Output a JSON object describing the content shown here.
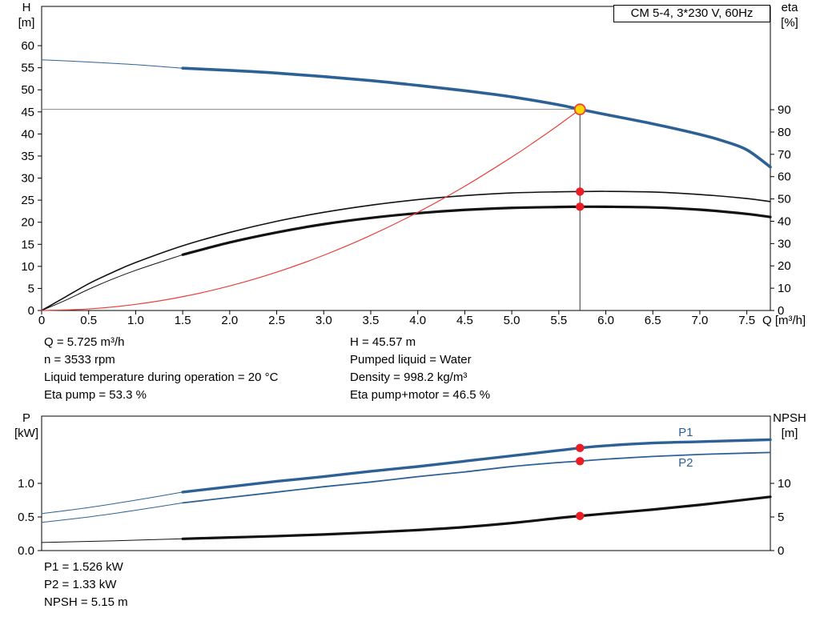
{
  "title_box": "CM 5-4, 3*230 V, 60Hz",
  "operating_data": {
    "left": [
      "Q = 5.725 m³/h",
      "n = 3533 rpm",
      "Liquid temperature during operation = 20 °C",
      "Eta pump = 53.3 %"
    ],
    "right": [
      "H = 45.57 m",
      "Pumped liquid = Water",
      "Density = 998.2 kg/m³",
      "Eta pump+motor = 46.5 %"
    ]
  },
  "power_data": [
    "P1 = 1.526 kW",
    "P2 = 1.33 kW",
    "NPSH = 5.15 m"
  ],
  "colors": {
    "curve_blue": "#2d6196",
    "curve_black": "#111111",
    "system_red": "#e8413c",
    "dot_red": "#ec1c24",
    "duty_yellow": "#ffd800",
    "crosshair_gray": "#8a8a8a"
  },
  "chart_data": [
    {
      "id": "qh-eta",
      "type": "line",
      "title": "CM 5-4, 3*230 V, 60Hz",
      "xlabel": "Q [m³/h]",
      "ylabel_left": [
        "H",
        "[m]"
      ],
      "ylabel_right": [
        "eta",
        "[%]"
      ],
      "xlim": [
        0,
        7.75
      ],
      "ylim_left": [
        0,
        68.9
      ],
      "ylim_right": [
        0,
        136.3
      ],
      "xticks": [
        0,
        0.5,
        1,
        1.5,
        2,
        2.5,
        3,
        3.5,
        4,
        4.5,
        5,
        5.5,
        6,
        6.5,
        7,
        7.5
      ],
      "xtick_labels": [
        "0",
        "0.5",
        "1.0",
        "1.5",
        "2.0",
        "2.5",
        "3.0",
        "3.5",
        "4.0",
        "4.5",
        "5.0",
        "5.5",
        "6.0",
        "6.5",
        "7.0",
        "7.5"
      ],
      "yticks_left": [
        0,
        5,
        10,
        15,
        20,
        25,
        30,
        35,
        40,
        45,
        50,
        55,
        60
      ],
      "ytick_labels_left": [
        "0",
        "5",
        "10",
        "15",
        "20",
        "25",
        "30",
        "35",
        "40",
        "45",
        "50",
        "55",
        "60"
      ],
      "yticks_right": [
        0,
        10,
        20,
        30,
        40,
        50,
        60,
        70,
        80,
        90
      ],
      "ytick_labels_right": [
        "0",
        "10",
        "20",
        "30",
        "40",
        "50",
        "60",
        "70",
        "80",
        "90"
      ],
      "series": [
        {
          "name": "qh-curve-extension",
          "axis": "left",
          "color": "#2d6196",
          "width": 1,
          "points": [
            [
              0,
              56.8
            ],
            [
              0.5,
              56.3
            ],
            [
              1.0,
              55.7
            ],
            [
              1.5,
              54.9
            ]
          ]
        },
        {
          "name": "qh-curve",
          "axis": "left",
          "color": "#2d6196",
          "width": 3.6,
          "points": [
            [
              1.5,
              54.9
            ],
            [
              2,
              54.4
            ],
            [
              2.5,
              53.8
            ],
            [
              3,
              53.0
            ],
            [
              3.5,
              52.1
            ],
            [
              4,
              51.0
            ],
            [
              4.5,
              49.8
            ],
            [
              5,
              48.4
            ],
            [
              5.5,
              46.6
            ],
            [
              5.725,
              45.57
            ],
            [
              6,
              44.4
            ],
            [
              6.5,
              42.3
            ],
            [
              7,
              39.9
            ],
            [
              7.25,
              38.4
            ],
            [
              7.5,
              36.4
            ],
            [
              7.75,
              32.5
            ]
          ]
        },
        {
          "name": "eta-pump-curve",
          "axis": "right",
          "color": "#111111",
          "width": 1.6,
          "points": [
            [
              0,
              0
            ],
            [
              0.25,
              6
            ],
            [
              0.5,
              12
            ],
            [
              0.75,
              17
            ],
            [
              1.0,
              21.5
            ],
            [
              1.5,
              29
            ],
            [
              2,
              35
            ],
            [
              2.5,
              40
            ],
            [
              3,
              44
            ],
            [
              3.5,
              47.2
            ],
            [
              4,
              49.7
            ],
            [
              4.5,
              51.5
            ],
            [
              5,
              52.7
            ],
            [
              5.5,
              53.2
            ],
            [
              5.725,
              53.3
            ],
            [
              6,
              53.4
            ],
            [
              6.5,
              53.1
            ],
            [
              7,
              52.0
            ],
            [
              7.5,
              50.2
            ],
            [
              7.75,
              48.8
            ]
          ]
        },
        {
          "name": "eta-pump-motor-curve-extension",
          "axis": "right",
          "color": "#111111",
          "width": 1,
          "points": [
            [
              0,
              0
            ],
            [
              0.25,
              4.5
            ],
            [
              0.5,
              9.5
            ],
            [
              0.75,
              14
            ],
            [
              1.0,
              18
            ],
            [
              1.5,
              25
            ]
          ]
        },
        {
          "name": "eta-pump-motor-curve",
          "axis": "right",
          "color": "#111111",
          "width": 3.2,
          "points": [
            [
              1.5,
              25
            ],
            [
              2,
              30.5
            ],
            [
              2.5,
              35
            ],
            [
              3,
              38.7
            ],
            [
              3.5,
              41.5
            ],
            [
              4,
              43.6
            ],
            [
              4.5,
              45.1
            ],
            [
              5,
              46.0
            ],
            [
              5.5,
              46.4
            ],
            [
              5.725,
              46.5
            ],
            [
              6,
              46.5
            ],
            [
              6.5,
              46.2
            ],
            [
              7,
              45.2
            ],
            [
              7.5,
              43.3
            ],
            [
              7.75,
              41.9
            ]
          ]
        },
        {
          "name": "system-curve",
          "axis": "left",
          "color": "#e8413c",
          "width": 1.2,
          "points": [
            [
              0,
              0
            ],
            [
              0.5,
              0.35
            ],
            [
              1,
              1.39
            ],
            [
              1.5,
              3.13
            ],
            [
              2,
              5.56
            ],
            [
              2.5,
              8.69
            ],
            [
              3,
              12.51
            ],
            [
              3.5,
              17.03
            ],
            [
              4,
              22.24
            ],
            [
              4.5,
              28.15
            ],
            [
              5,
              34.76
            ],
            [
              5.25,
              38.32
            ],
            [
              5.5,
              42.05
            ],
            [
              5.725,
              45.57
            ]
          ]
        }
      ],
      "crosshair": {
        "q": 5.725,
        "v": 45.57,
        "axis": "left"
      },
      "markers": [
        {
          "name": "duty-point",
          "axis": "left",
          "q": 5.725,
          "v": 45.57,
          "style": "duty"
        },
        {
          "name": "eta-pump-duty-dot",
          "axis": "right",
          "q": 5.725,
          "v": 53.3,
          "style": "dot"
        },
        {
          "name": "eta-pump-motor-duty-dot",
          "axis": "right",
          "q": 5.725,
          "v": 46.5,
          "style": "dot"
        }
      ],
      "annotations": []
    },
    {
      "id": "power-npsh",
      "type": "line",
      "title": "",
      "xlabel": "",
      "ylabel_left": [
        "P",
        "[kW]"
      ],
      "ylabel_right": [
        "NPSH",
        "[m]"
      ],
      "xlim": [
        0,
        7.75
      ],
      "ylim_left": [
        0,
        2.0
      ],
      "ylim_right": [
        0,
        20
      ],
      "xticks": [],
      "xtick_labels": [],
      "yticks_left": [
        0,
        0.5,
        1.0
      ],
      "ytick_labels_left": [
        "0.0",
        "0.5",
        "1.0"
      ],
      "yticks_right": [
        0,
        5,
        10
      ],
      "ytick_labels_right": [
        "0",
        "5",
        "10"
      ],
      "series": [
        {
          "name": "p1-curve-extension",
          "axis": "left",
          "color": "#2d6196",
          "width": 1,
          "points": [
            [
              0,
              0.55
            ],
            [
              0.5,
              0.64
            ],
            [
              1.0,
              0.75
            ],
            [
              1.5,
              0.87
            ]
          ]
        },
        {
          "name": "p1-curve",
          "axis": "left",
          "color": "#2d6196",
          "width": 3.4,
          "points": [
            [
              1.5,
              0.87
            ],
            [
              2,
              0.95
            ],
            [
              2.5,
              1.03
            ],
            [
              3,
              1.1
            ],
            [
              3.5,
              1.18
            ],
            [
              4,
              1.25
            ],
            [
              4.5,
              1.33
            ],
            [
              5,
              1.41
            ],
            [
              5.5,
              1.49
            ],
            [
              5.725,
              1.526
            ],
            [
              6,
              1.56
            ],
            [
              6.5,
              1.6
            ],
            [
              7,
              1.62
            ],
            [
              7.5,
              1.64
            ],
            [
              7.75,
              1.65
            ]
          ]
        },
        {
          "name": "p2-curve-extension",
          "axis": "left",
          "color": "#2d6196",
          "width": 1,
          "points": [
            [
              0,
              0.42
            ],
            [
              0.5,
              0.5
            ],
            [
              1.0,
              0.6
            ],
            [
              1.5,
              0.71
            ]
          ]
        },
        {
          "name": "p2-curve",
          "axis": "left",
          "color": "#2d6196",
          "width": 1.8,
          "points": [
            [
              1.5,
              0.71
            ],
            [
              2,
              0.79
            ],
            [
              2.5,
              0.87
            ],
            [
              3,
              0.95
            ],
            [
              3.5,
              1.02
            ],
            [
              4,
              1.1
            ],
            [
              4.5,
              1.17
            ],
            [
              5,
              1.25
            ],
            [
              5.5,
              1.31
            ],
            [
              5.725,
              1.33
            ],
            [
              6,
              1.36
            ],
            [
              6.5,
              1.4
            ],
            [
              7,
              1.43
            ],
            [
              7.5,
              1.45
            ],
            [
              7.75,
              1.46
            ]
          ]
        },
        {
          "name": "npsh-curve-extension",
          "axis": "right",
          "color": "#111111",
          "width": 1,
          "points": [
            [
              0,
              1.2
            ],
            [
              0.75,
              1.45
            ],
            [
              1.5,
              1.75
            ]
          ]
        },
        {
          "name": "npsh-curve",
          "axis": "right",
          "color": "#111111",
          "width": 3.2,
          "points": [
            [
              1.5,
              1.75
            ],
            [
              2,
              1.95
            ],
            [
              2.5,
              2.15
            ],
            [
              3,
              2.4
            ],
            [
              3.5,
              2.7
            ],
            [
              4,
              3.05
            ],
            [
              4.5,
              3.5
            ],
            [
              5,
              4.1
            ],
            [
              5.5,
              4.85
            ],
            [
              5.725,
              5.15
            ],
            [
              6,
              5.5
            ],
            [
              6.5,
              6.1
            ],
            [
              7,
              6.8
            ],
            [
              7.5,
              7.6
            ],
            [
              7.75,
              8.0
            ]
          ]
        }
      ],
      "crosshair": null,
      "markers": [
        {
          "name": "p1-duty-dot",
          "axis": "left",
          "q": 5.725,
          "v": 1.526,
          "style": "dot"
        },
        {
          "name": "p2-duty-dot",
          "axis": "left",
          "q": 5.725,
          "v": 1.33,
          "style": "dot"
        },
        {
          "name": "npsh-duty-dot",
          "axis": "right",
          "q": 5.725,
          "v": 5.15,
          "style": "dot"
        }
      ],
      "annotations": [
        {
          "name": "p1-label",
          "text": "P1",
          "q": 6.85,
          "v": 1.7,
          "axis": "left",
          "color": "#2d6196"
        },
        {
          "name": "p2-label",
          "text": "P2",
          "q": 6.85,
          "v": 1.25,
          "axis": "left",
          "color": "#2d6196"
        }
      ]
    }
  ]
}
